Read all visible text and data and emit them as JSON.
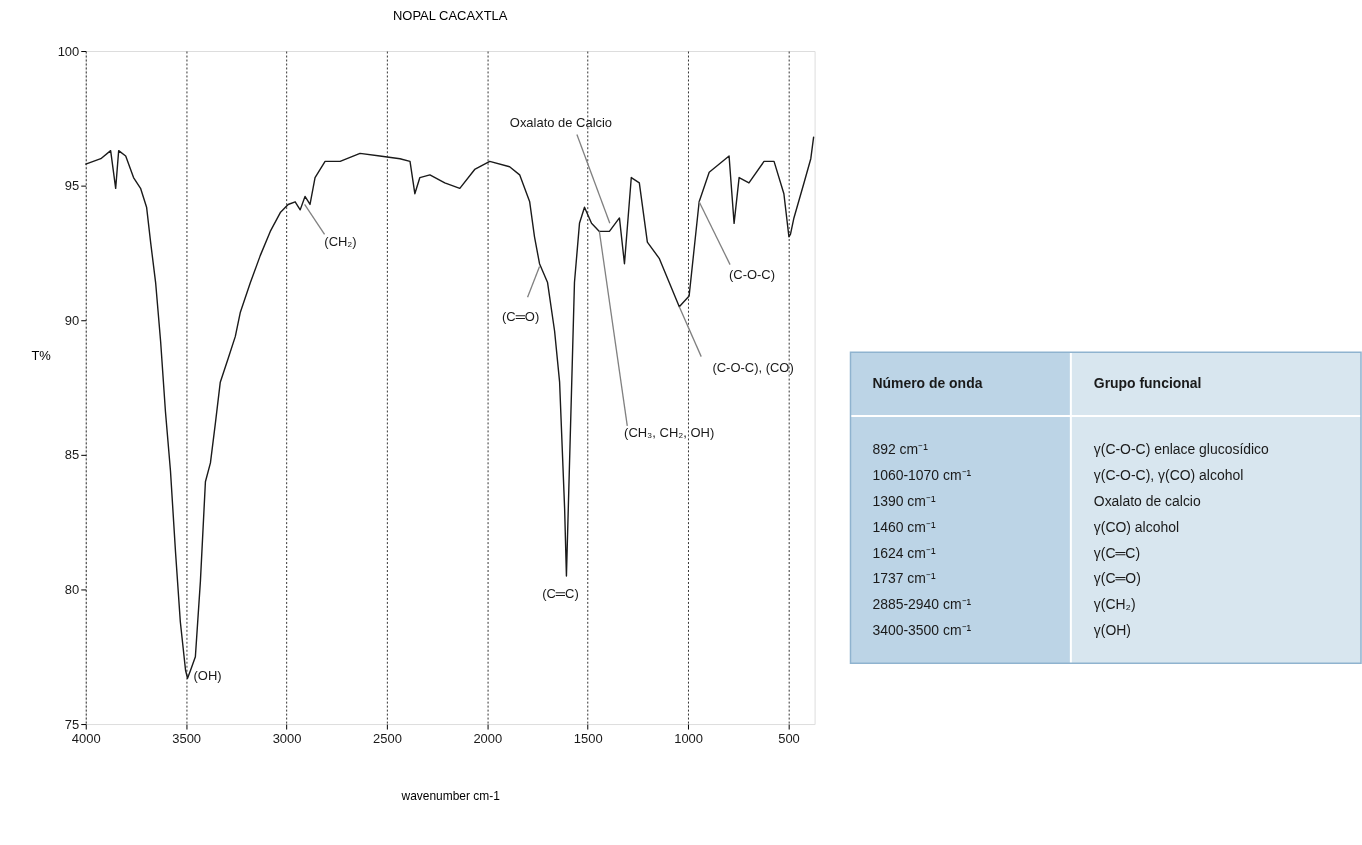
{
  "chart_data": [
    {
      "type": "line",
      "title": "NOPAL CACAXTLA",
      "xlabel": "wavenumber cm-1",
      "ylabel": "T%",
      "xlim": [
        4000,
        370
      ],
      "xticks": [
        4000,
        3500,
        3000,
        2500,
        2000,
        1500,
        1000,
        500
      ],
      "ylim": [
        75,
        100
      ],
      "yticks": [
        75,
        80,
        85,
        90,
        95,
        100
      ],
      "grid": "x",
      "series": [
        {
          "color": "#1a1a1a",
          "x": [
            4000,
            3925,
            3876,
            3851,
            3836,
            3801,
            3762,
            3727,
            3697,
            3677,
            3652,
            3627,
            3603,
            3578,
            3553,
            3529,
            3503,
            3493,
            3478,
            3454,
            3429,
            3404,
            3379,
            3354,
            3330,
            3290,
            3255,
            3230,
            3180,
            3131,
            3081,
            3031,
            2992,
            2957,
            2932,
            2908,
            2883,
            2858,
            2808,
            2733,
            2634,
            2535,
            2435,
            2385,
            2361,
            2336,
            2286,
            2212,
            2137,
            2063,
            1988,
            1889,
            1839,
            1789,
            1765,
            1740,
            1700,
            1665,
            1640,
            1615,
            1606,
            1581,
            1566,
            1541,
            1516,
            1481,
            1442,
            1392,
            1342,
            1317,
            1283,
            1243,
            1203,
            1144,
            1094,
            1044,
            995,
            945,
            895,
            796,
            771,
            746,
            697,
            622,
            572,
            523,
            498,
            490,
            473,
            423,
            389,
            375
          ],
          "values": [
            95.8,
            96.0,
            96.3,
            94.9,
            96.3,
            96.1,
            95.3,
            94.9,
            94.2,
            92.9,
            91.4,
            89.2,
            86.6,
            84.4,
            81.4,
            78.8,
            77.0,
            76.7,
            77.0,
            77.5,
            80.3,
            84.0,
            84.7,
            86.2,
            87.7,
            88.6,
            89.4,
            90.3,
            91.4,
            92.4,
            93.3,
            94.0,
            94.3,
            94.4,
            94.1,
            94.6,
            94.3,
            95.3,
            95.9,
            95.9,
            96.2,
            96.1,
            96.0,
            95.9,
            94.7,
            95.3,
            95.4,
            95.1,
            94.9,
            95.6,
            95.9,
            95.7,
            95.4,
            94.4,
            93.1,
            92.1,
            91.4,
            89.6,
            87.7,
            83.0,
            80.5,
            87.3,
            91.4,
            93.6,
            94.2,
            93.6,
            93.3,
            93.3,
            93.8,
            92.1,
            95.3,
            95.1,
            92.9,
            92.3,
            91.4,
            90.5,
            90.9,
            94.4,
            95.5,
            96.1,
            93.6,
            95.3,
            95.1,
            95.9,
            95.9,
            94.7,
            93.1,
            93.2,
            93.8,
            95.1,
            96.0,
            96.8
          ]
        }
      ],
      "annotations": [
        {
          "text": "(OH)",
          "x": 3493,
          "y": 76.7
        },
        {
          "text": "(CH₂)",
          "x": 2910,
          "y": 94.3
        },
        {
          "text": "(C═O)",
          "x": 1740,
          "y": 92.0
        },
        {
          "text": "(C═C)",
          "x": 1606,
          "y": 80.5
        },
        {
          "text": "Oxalato de Calcio",
          "x": 1390,
          "y": 93.6
        },
        {
          "text": "(CH₃, CH₂, OH)",
          "x": 1442,
          "y": 93.3
        },
        {
          "text": "(C-O-C), (CO)",
          "x": 1044,
          "y": 90.5
        },
        {
          "text": "(C-O-C)",
          "x": 945,
          "y": 94.4
        }
      ]
    },
    {
      "type": "other",
      "annotations": [
        "Número de onda",
        "Grupo funcional",
        "892 cm⁻¹",
        "γ(C-O-C) enlace glucosídico",
        "1060-1070 cm⁻¹",
        "γ(C-O-C), γ(CO) alcohol",
        "1390 cm⁻¹",
        "Oxalato de calcio",
        "1460 cm⁻¹",
        "γ(CO) alcohol",
        "1624 cm⁻¹",
        "γ(C═C)",
        "1737 cm⁻¹",
        "γ(C═O)",
        "2885-2940 cm⁻¹",
        "γ(CH₂)",
        "3400-3500 cm⁻¹",
        "γ(OH)"
      ]
    }
  ]
}
